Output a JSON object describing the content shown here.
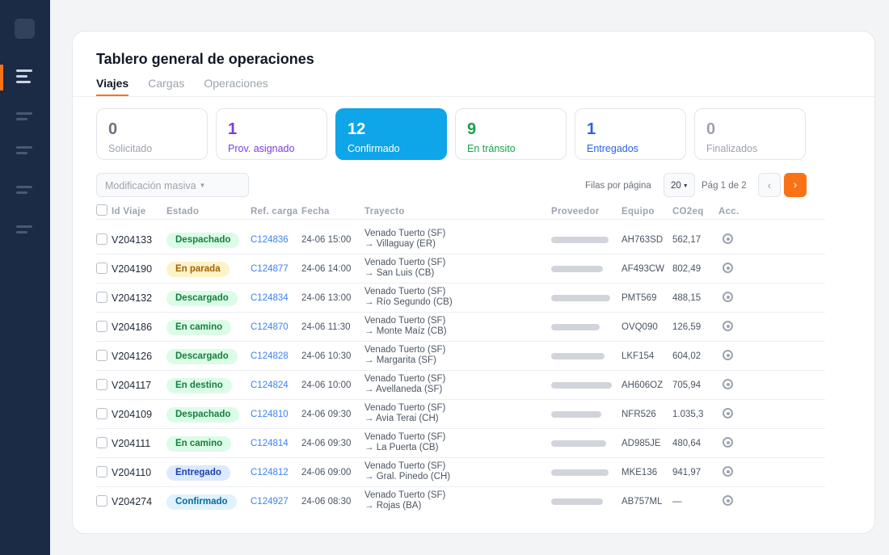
{
  "title": "Tablero general de operaciones",
  "tabs": [
    {
      "label": "Viajes",
      "active": true
    },
    {
      "label": "Cargas",
      "active": false
    },
    {
      "label": "Operaciones",
      "active": false
    }
  ],
  "stats": [
    {
      "num": "0",
      "label": "Solicitado",
      "num_color": "#6b7280",
      "label_color": "#9ca3af",
      "bg": "#ffffff"
    },
    {
      "num": "1",
      "label": "Prov. asignado",
      "num_color": "#7c3aed",
      "label_color": "#7c3aed",
      "bg": "#ffffff"
    },
    {
      "num": "12",
      "label": "Confirmado",
      "num_color": "#ffffff",
      "label_color": "#ffffff",
      "bg": "#0ea5e9"
    },
    {
      "num": "9",
      "label": "En tránsito",
      "num_color": "#16a34a",
      "label_color": "#16a34a",
      "bg": "#ffffff"
    },
    {
      "num": "1",
      "label": "Entregados",
      "num_color": "#2563eb",
      "label_color": "#2563eb",
      "bg": "#ffffff"
    },
    {
      "num": "0",
      "label": "Finalizados",
      "num_color": "#9ca3af",
      "label_color": "#9ca3af",
      "bg": "#ffffff"
    }
  ],
  "toolbar": {
    "mass_edit": "Modificación masiva",
    "rows_label": "Filas por página",
    "rows_value": "20",
    "page_label": "Pág 1 de 2",
    "prev": "‹",
    "next": "›"
  },
  "columns": {
    "id": "Id Viaje",
    "status": "Estado",
    "ref": "Ref. carga",
    "date": "Fecha",
    "route": "Trayecto",
    "provider": "Proveedor",
    "equipment": "Equipo",
    "co2": "CO2eq",
    "actions": "Acc."
  },
  "status_colors": {
    "Despachado": {
      "bg": "#dcfce7",
      "fg": "#15803d"
    },
    "En parada": {
      "bg": "#fef3c7",
      "fg": "#a16207"
    },
    "Descargado": {
      "bg": "#dcfce7",
      "fg": "#15803d"
    },
    "En camino": {
      "bg": "#dcfce7",
      "fg": "#15803d"
    },
    "En destino": {
      "bg": "#dcfce7",
      "fg": "#15803d"
    },
    "Entregado": {
      "bg": "#dbeafe",
      "fg": "#1e40af"
    },
    "Confirmado": {
      "bg": "#e0f2fe",
      "fg": "#0369a1"
    }
  },
  "rows": [
    {
      "id": "V204133",
      "status": "Despachado",
      "ref": "C124836",
      "date": "24-06 15:00",
      "from": "Venado Tuerto (SF)",
      "to": "→ Villaguay (ER)",
      "equipment": "AH763SD",
      "co2": "562,17",
      "provider_bar": 0.71
    },
    {
      "id": "V204190",
      "status": "En parada",
      "ref": "C124877",
      "date": "24-06 14:00",
      "from": "Venado Tuerto (SF)",
      "to": "→ San Luis (CB)",
      "equipment": "AF493CW",
      "co2": "802,49",
      "provider_bar": 0.64
    },
    {
      "id": "V204132",
      "status": "Descargado",
      "ref": "C124834",
      "date": "24-06 13:00",
      "from": "Venado Tuerto (SF)",
      "to": "→ Río Segundo (CB)",
      "equipment": "PMT569",
      "co2": "488,15",
      "provider_bar": 0.73
    },
    {
      "id": "V204186",
      "status": "En camino",
      "ref": "C124870",
      "date": "24-06 11:30",
      "from": "Venado Tuerto (SF)",
      "to": "→ Monte Maíz (CB)",
      "equipment": "OVQ090",
      "co2": "126,59",
      "provider_bar": 0.6
    },
    {
      "id": "V204126",
      "status": "Descargado",
      "ref": "C124828",
      "date": "24-06 10:30",
      "from": "Venado Tuerto (SF)",
      "to": "→ Margarita (SF)",
      "equipment": "LKF154",
      "co2": "604,02",
      "provider_bar": 0.66
    },
    {
      "id": "V204117",
      "status": "En destino",
      "ref": "C124824",
      "date": "24-06 10:00",
      "from": "Venado Tuerto (SF)",
      "to": "→ Avellaneda (SF)",
      "equipment": "AH606OZ",
      "co2": "705,94",
      "provider_bar": 0.75
    },
    {
      "id": "V204109",
      "status": "Despachado",
      "ref": "C124810",
      "date": "24-06 09:30",
      "from": "Venado Tuerto (SF)",
      "to": "→ Avia Terai (CH)",
      "equipment": "NFR526",
      "co2": "1.035,3",
      "provider_bar": 0.62
    },
    {
      "id": "V204111",
      "status": "En camino",
      "ref": "C124814",
      "date": "24-06 09:30",
      "from": "Venado Tuerto (SF)",
      "to": "→ La Puerta (CB)",
      "equipment": "AD985JE",
      "co2": "480,64",
      "provider_bar": 0.68
    },
    {
      "id": "V204110",
      "status": "Entregado",
      "ref": "C124812",
      "date": "24-06 09:00",
      "from": "Venado Tuerto (SF)",
      "to": "→ Gral. Pinedo (CH)",
      "equipment": "MKE136",
      "co2": "941,97",
      "provider_bar": 0.71
    },
    {
      "id": "V204274",
      "status": "Confirmado",
      "ref": "C124927",
      "date": "24-06 08:30",
      "from": "Venado Tuerto (SF)",
      "to": "→ Rojas (BA)",
      "equipment": "AB757ML",
      "co2": "—",
      "provider_bar": 0.64
    }
  ]
}
